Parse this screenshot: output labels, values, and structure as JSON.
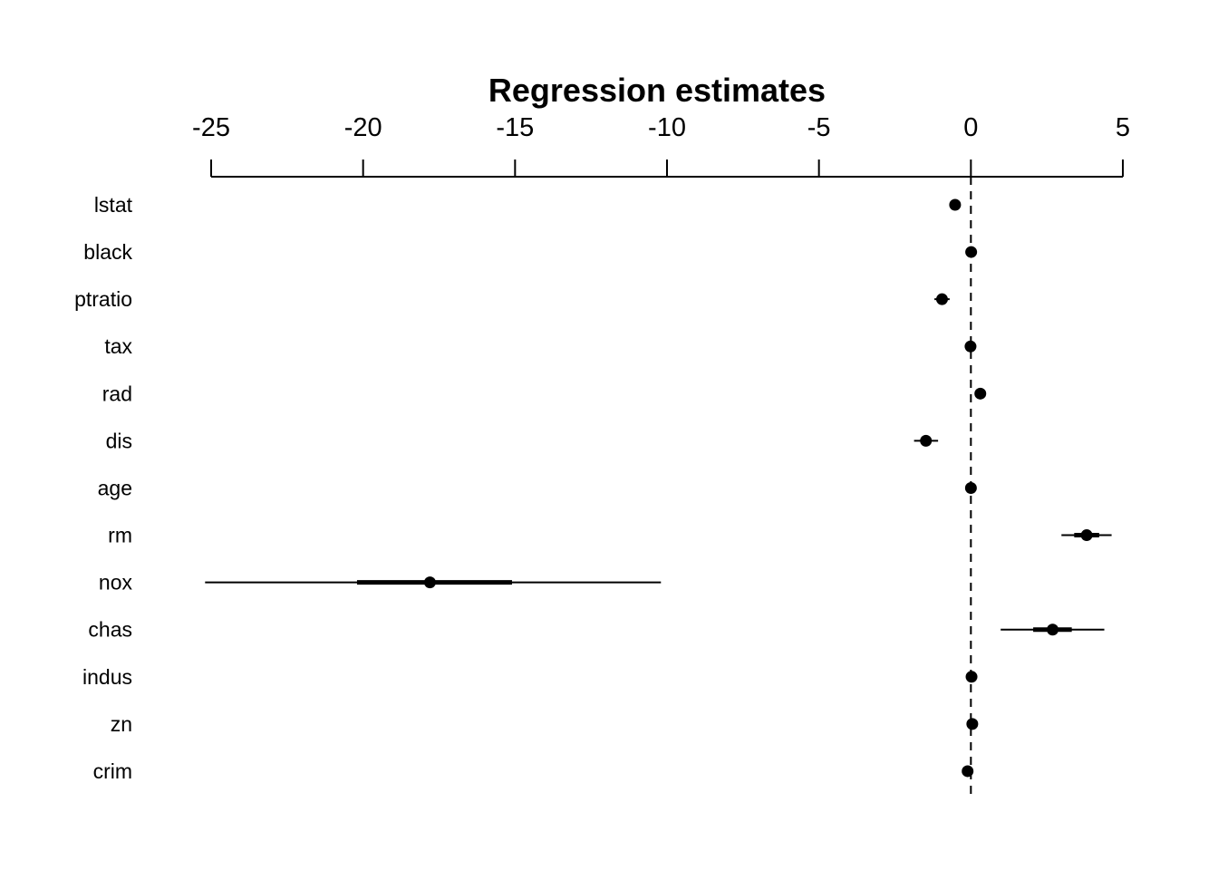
{
  "chart_data": {
    "type": "coefficient-plot",
    "title": "Regression estimates",
    "x_ticks": [
      -25,
      -20,
      -15,
      -10,
      -5,
      0,
      5
    ],
    "xlim": [
      -25,
      5
    ],
    "reference_line": 0,
    "axis_position": "top",
    "grid": false,
    "variables": [
      {
        "label": "lstat",
        "estimate": -0.52,
        "inner": [
          -0.52,
          -0.52
        ],
        "outer": [
          -0.55,
          -0.5
        ]
      },
      {
        "label": "black",
        "estimate": 0.009,
        "inner": [
          0.009,
          0.009
        ],
        "outer": [
          0.005,
          0.013
        ]
      },
      {
        "label": "ptratio",
        "estimate": -0.95,
        "inner": [
          -1.05,
          -0.85
        ],
        "outer": [
          -1.2,
          -0.7
        ]
      },
      {
        "label": "tax",
        "estimate": -0.012,
        "inner": [
          -0.012,
          -0.012
        ],
        "outer": [
          -0.02,
          -0.005
        ]
      },
      {
        "label": "rad",
        "estimate": 0.31,
        "inner": [
          0.31,
          0.31
        ],
        "outer": [
          0.28,
          0.34
        ]
      },
      {
        "label": "dis",
        "estimate": -1.48,
        "inner": [
          -1.6,
          -1.35
        ],
        "outer": [
          -1.87,
          -1.08
        ]
      },
      {
        "label": "age",
        "estimate": 0.001,
        "inner": [
          0.001,
          0.001
        ],
        "outer": [
          -0.02,
          0.02
        ]
      },
      {
        "label": "rm",
        "estimate": 3.81,
        "inner": [
          3.4,
          4.22
        ],
        "outer": [
          2.98,
          4.63
        ]
      },
      {
        "label": "nox",
        "estimate": -17.8,
        "inner": [
          -20.2,
          -15.1
        ],
        "outer": [
          -25.2,
          -10.2
        ]
      },
      {
        "label": "chas",
        "estimate": 2.69,
        "inner": [
          2.05,
          3.32
        ],
        "outer": [
          0.98,
          4.39
        ]
      },
      {
        "label": "indus",
        "estimate": 0.021,
        "inner": [
          0.021,
          0.021
        ],
        "outer": [
          -0.1,
          0.14
        ]
      },
      {
        "label": "zn",
        "estimate": 0.046,
        "inner": [
          0.046,
          0.046
        ],
        "outer": [
          0.02,
          0.07
        ]
      },
      {
        "label": "crim",
        "estimate": -0.108,
        "inner": [
          -0.108,
          -0.108
        ],
        "outer": [
          -0.17,
          -0.04
        ]
      }
    ],
    "colors": {
      "marks": "#000000",
      "background": "#ffffff"
    }
  }
}
